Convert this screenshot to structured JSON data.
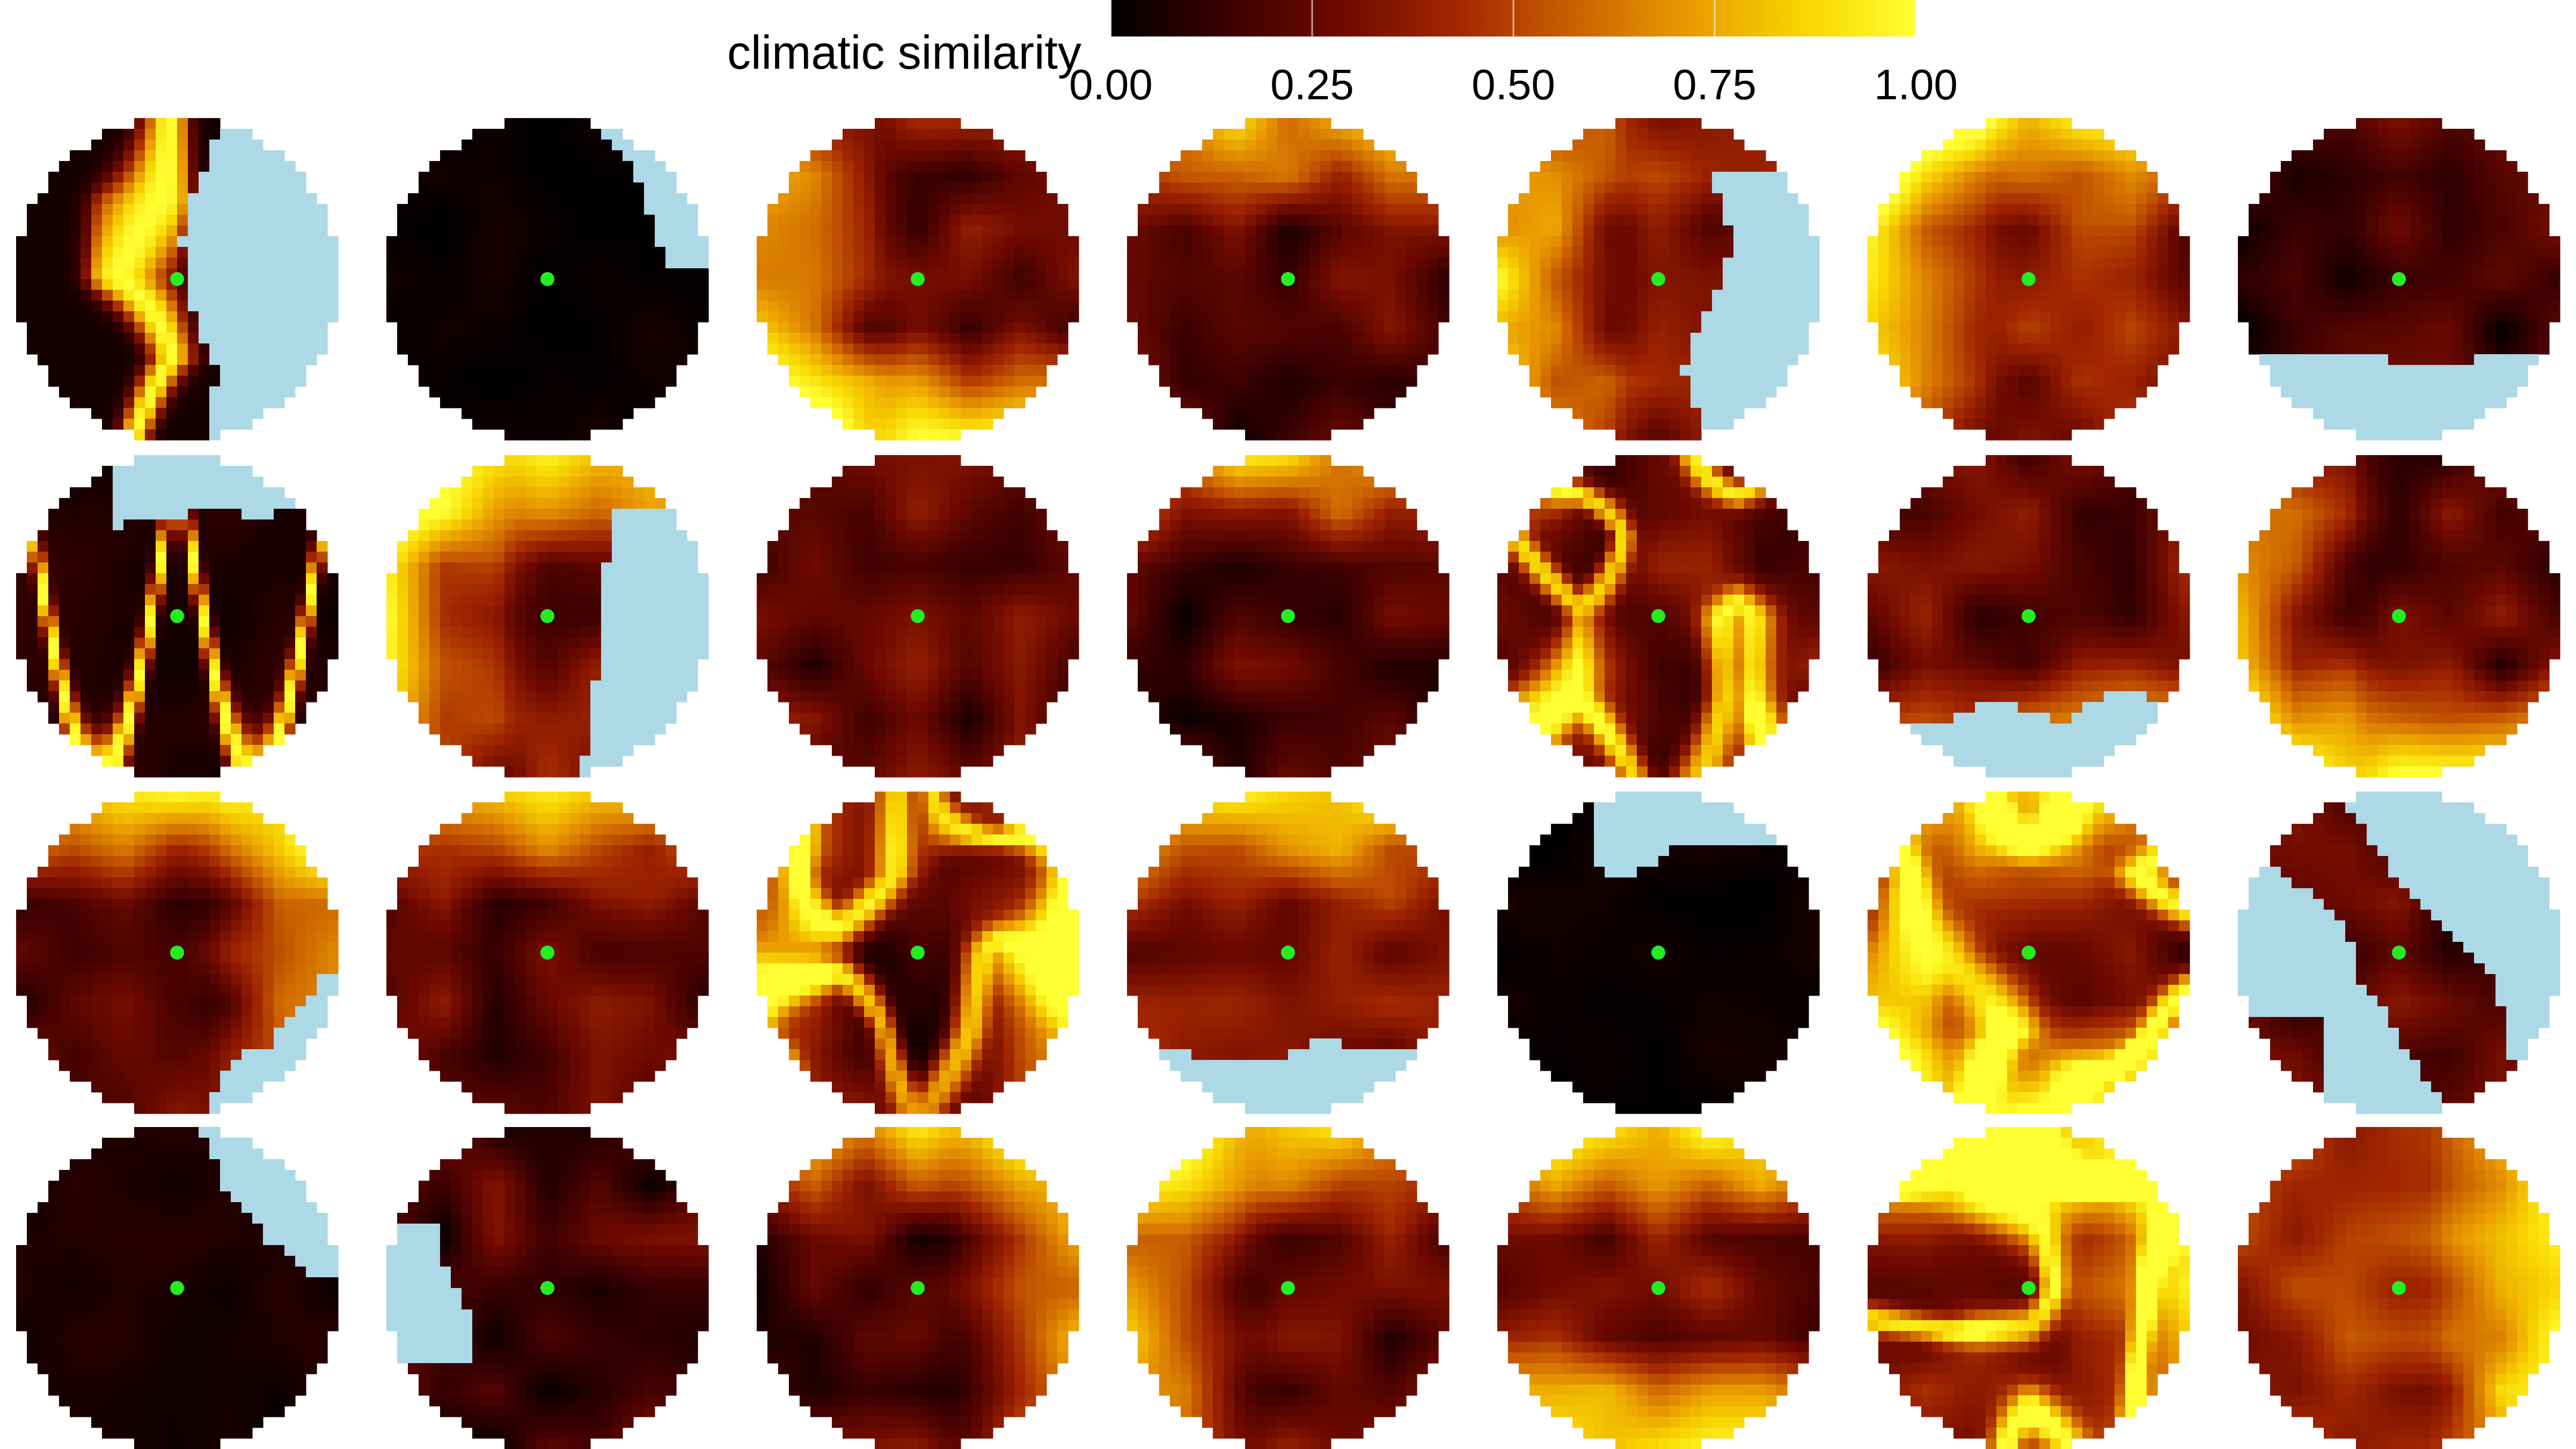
{
  "chart_data": {
    "type": "heatmap",
    "title": "",
    "legend": {
      "title": "climatic similarity",
      "ticks": [
        "0.00",
        "0.25",
        "0.50",
        "0.75",
        "1.00"
      ],
      "range": [
        0,
        1
      ],
      "placement": "top-center",
      "colormap": [
        "#000000",
        "#3a0000",
        "#6e0a00",
        "#a12600",
        "#c95f00",
        "#e89900",
        "#f8d400",
        "#ffff33"
      ]
    },
    "grid": {
      "rows": 4,
      "cols": 7
    },
    "water_color": "#add8e6",
    "focal_point_color": "#22ee22",
    "panels": [
      {
        "row": 1,
        "col": 1,
        "mean_similarity": 0.12,
        "pattern": "yellow ridge band running north-south along coast",
        "water": "east half"
      },
      {
        "row": 1,
        "col": 2,
        "mean_similarity": 0.03,
        "pattern": "nearly uniform dark",
        "water": "north-east edge"
      },
      {
        "row": 1,
        "col": 3,
        "mean_similarity": 0.3,
        "pattern": "moderate, brighter south-west",
        "water": "none"
      },
      {
        "row": 1,
        "col": 4,
        "mean_similarity": 0.22,
        "pattern": "bright band along north edge",
        "water": "none"
      },
      {
        "row": 1,
        "col": 5,
        "mean_similarity": 0.4,
        "pattern": "patchy bright west",
        "water": "east"
      },
      {
        "row": 1,
        "col": 6,
        "mean_similarity": 0.4,
        "pattern": "broad moderate-high, brighter north-west",
        "water": "none"
      },
      {
        "row": 1,
        "col": 7,
        "mean_similarity": 0.18,
        "pattern": "dark with small bright patches",
        "water": "south"
      },
      {
        "row": 2,
        "col": 1,
        "mean_similarity": 0.15,
        "pattern": "W-shaped yellow ridge",
        "water": "north"
      },
      {
        "row": 2,
        "col": 2,
        "mean_similarity": 0.35,
        "pattern": "patchy bright west and north",
        "water": "east"
      },
      {
        "row": 2,
        "col": 3,
        "mean_similarity": 0.25,
        "pattern": "moderate uniform",
        "water": "none"
      },
      {
        "row": 2,
        "col": 4,
        "mean_similarity": 0.2,
        "pattern": "dark center, brighter north",
        "water": "none"
      },
      {
        "row": 2,
        "col": 5,
        "mean_similarity": 0.3,
        "pattern": "diagonal bright ridges",
        "water": "none"
      },
      {
        "row": 2,
        "col": 6,
        "mean_similarity": 0.3,
        "pattern": "gradient bright toward south",
        "water": "south"
      },
      {
        "row": 2,
        "col": 7,
        "mean_similarity": 0.25,
        "pattern": "moderate, bright south-west",
        "water": "none"
      },
      {
        "row": 3,
        "col": 1,
        "mean_similarity": 0.25,
        "pattern": "bright patches north-east of center",
        "water": "south-east"
      },
      {
        "row": 3,
        "col": 2,
        "mean_similarity": 0.25,
        "pattern": "bright band along north edge",
        "water": "none"
      },
      {
        "row": 3,
        "col": 3,
        "mean_similarity": 0.15,
        "pattern": "thin bright east-west ridge",
        "water": "none"
      },
      {
        "row": 3,
        "col": 4,
        "mean_similarity": 0.4,
        "pattern": "bright textured north half",
        "water": "south"
      },
      {
        "row": 3,
        "col": 5,
        "mean_similarity": 0.03,
        "pattern": "uniform dark",
        "water": "north"
      },
      {
        "row": 3,
        "col": 6,
        "mean_similarity": 0.3,
        "pattern": "bright streaks north and south",
        "water": "none"
      },
      {
        "row": 3,
        "col": 7,
        "mean_similarity": 0.25,
        "pattern": "bright diagonal patch near center",
        "water": "large, surrounding"
      },
      {
        "row": 4,
        "col": 1,
        "mean_similarity": 0.06,
        "pattern": "mostly dark",
        "water": "north-east edge"
      },
      {
        "row": 4,
        "col": 2,
        "mean_similarity": 0.2,
        "pattern": "moderate dark",
        "water": "west"
      },
      {
        "row": 4,
        "col": 3,
        "mean_similarity": 0.2,
        "pattern": "dark with bright north-east",
        "water": "none"
      },
      {
        "row": 4,
        "col": 4,
        "mean_similarity": 0.25,
        "pattern": "bright patches north-west",
        "water": "none"
      },
      {
        "row": 4,
        "col": 5,
        "mean_similarity": 0.35,
        "pattern": "dark north, bright south",
        "water": "none"
      },
      {
        "row": 4,
        "col": 6,
        "mean_similarity": 0.35,
        "pattern": "bright streaks north and east",
        "water": "none"
      },
      {
        "row": 4,
        "col": 7,
        "mean_similarity": 0.5,
        "pattern": "high, bright east",
        "water": "none"
      }
    ]
  }
}
